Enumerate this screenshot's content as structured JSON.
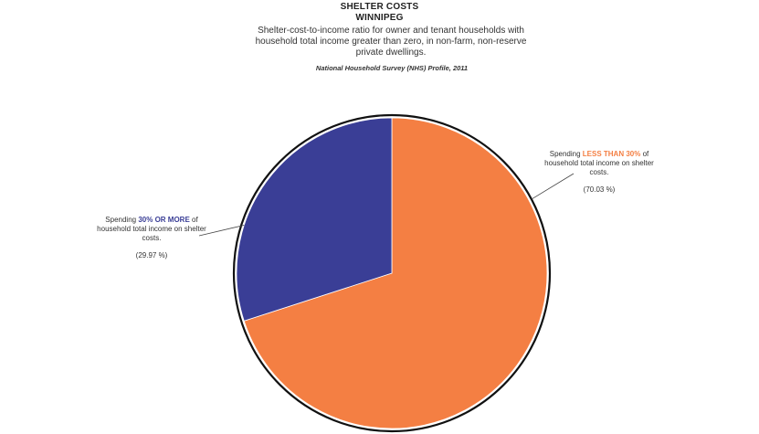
{
  "title_line1": "SHELTER COSTS",
  "title_line2": "WINNIPEG",
  "subtitle": "Shelter-cost-to-income ratio for owner and tenant households with household total income greater than zero, in non-farm, non-reserve private dwellings.",
  "source": "National Household Survey (NHS) Profile, 2011",
  "chart_data": {
    "type": "pie",
    "title": "SHELTER COSTS WINNIPEG",
    "slices": [
      {
        "name": "Spending LESS THAN 30% of household total income on shelter costs.",
        "value": 70.03,
        "color": "#F47F43",
        "label_prefix": "Spending ",
        "label_highlight": "LESS THAN 30%",
        "label_suffix": " of household total income on shelter costs.",
        "value_text": "(70.03 %)"
      },
      {
        "name": "Spending 30% OR MORE of household total income on shelter costs.",
        "value": 29.97,
        "color": "#3A3E96",
        "label_prefix": "Spending ",
        "label_highlight": "30% OR MORE",
        "label_suffix": " of household total income on shelter costs.",
        "value_text": "(29.97 %)"
      }
    ],
    "start_angle": "12 o'clock",
    "direction": "clockwise"
  }
}
